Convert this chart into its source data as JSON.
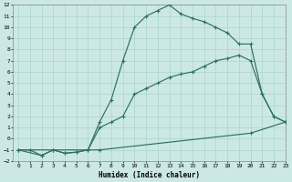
{
  "xlabel": "Humidex (Indice chaleur)",
  "ylabel": "",
  "bg_color": "#cce8e4",
  "grid_color": "#aad4ce",
  "line_color": "#2e7060",
  "xlim": [
    -0.5,
    23
  ],
  "ylim": [
    -2,
    12
  ],
  "xticks": [
    0,
    1,
    2,
    3,
    4,
    5,
    6,
    7,
    8,
    9,
    10,
    11,
    12,
    13,
    14,
    15,
    16,
    17,
    18,
    19,
    20,
    21,
    22,
    23
  ],
  "yticks": [
    -2,
    -1,
    0,
    1,
    2,
    3,
    4,
    5,
    6,
    7,
    8,
    9,
    10,
    11,
    12
  ],
  "line1_x": [
    0,
    1,
    2,
    3,
    4,
    5,
    6,
    7,
    8,
    9,
    10,
    11,
    12,
    13,
    14,
    15,
    16,
    17,
    18,
    19,
    20,
    21,
    22,
    23
  ],
  "line1_y": [
    -1,
    -1,
    -1.5,
    -1,
    -1.3,
    -1.2,
    -1,
    1.5,
    3.5,
    7,
    10,
    11,
    11.5,
    12,
    11.2,
    10.8,
    10.5,
    10,
    9.5,
    8.5,
    8.5,
    4,
    2,
    1.5
  ],
  "line2_x": [
    0,
    2,
    3,
    4,
    5,
    6,
    7,
    8,
    9,
    10,
    11,
    12,
    13,
    14,
    15,
    16,
    17,
    18,
    19,
    20,
    21,
    22,
    23
  ],
  "line2_y": [
    -1,
    -1.5,
    -1,
    -1.3,
    -1.2,
    -1,
    1,
    1.5,
    2,
    4,
    4.5,
    5,
    5.5,
    5.8,
    6,
    6.5,
    7,
    7.2,
    7.5,
    7,
    4,
    2,
    1.5
  ],
  "line3_x": [
    0,
    7,
    20,
    23
  ],
  "line3_y": [
    -1,
    -1,
    0.5,
    1.5
  ]
}
